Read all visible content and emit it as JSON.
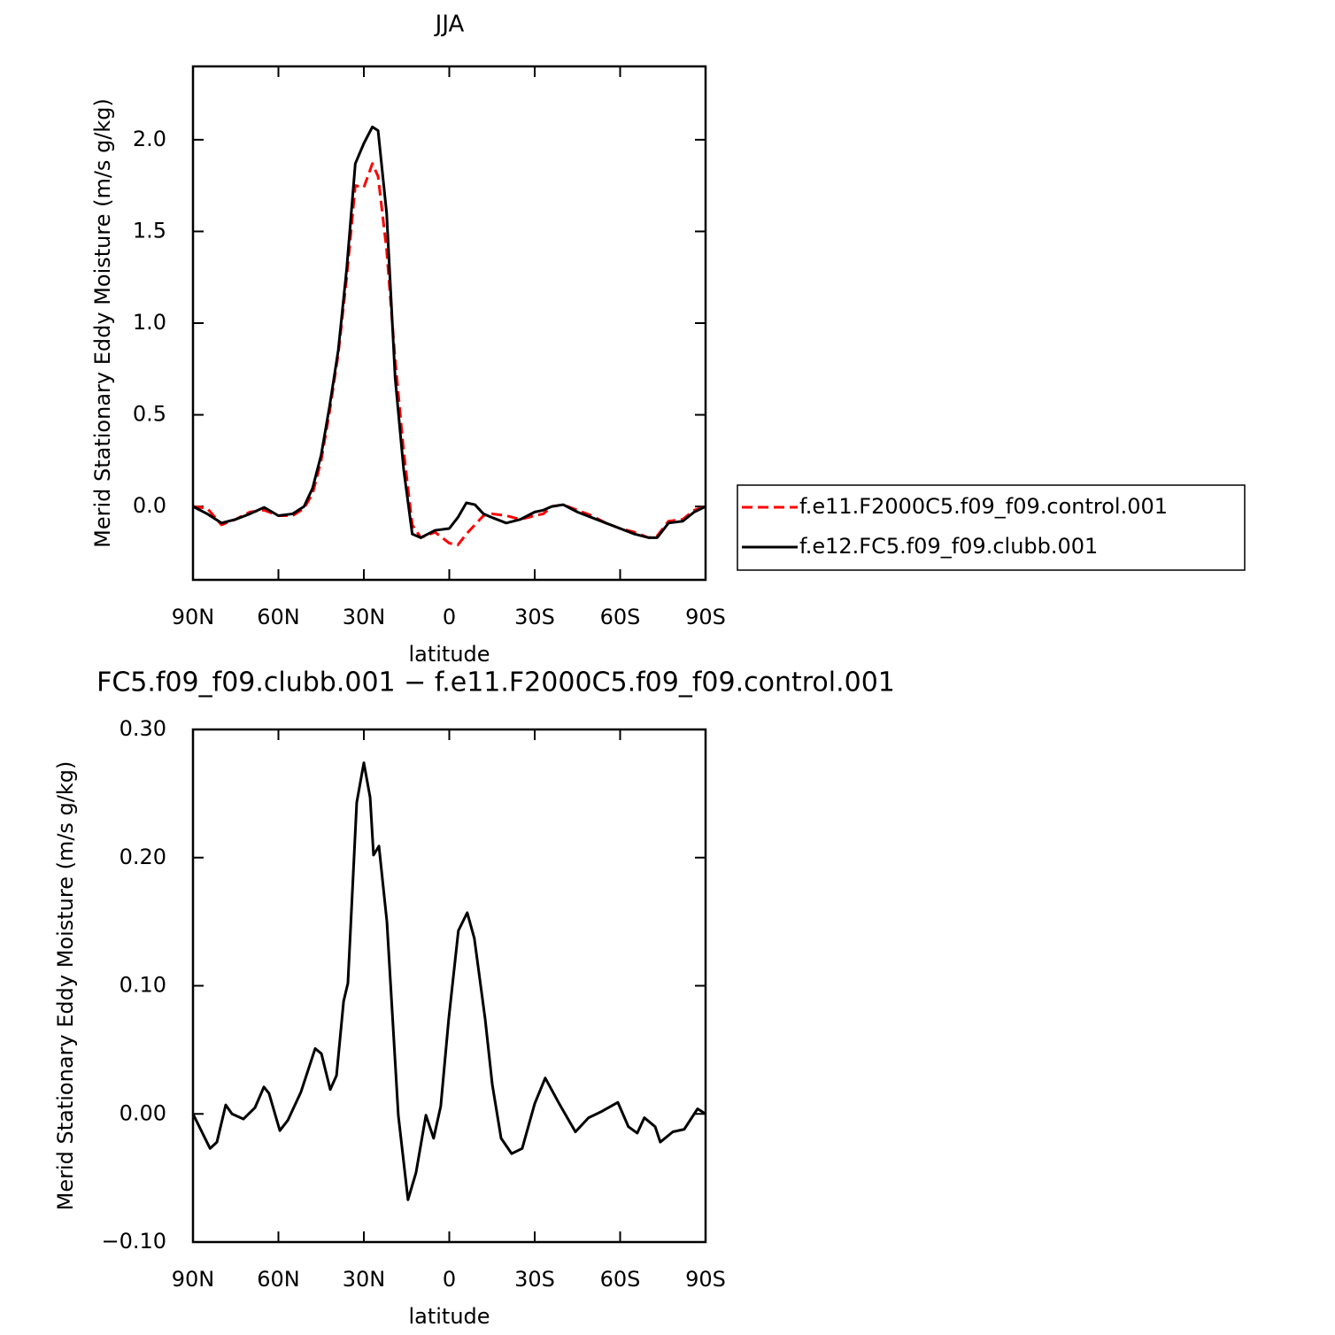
{
  "chart_data": [
    {
      "type": "line",
      "title": "JJA",
      "xlabel": "latitude",
      "ylabel": "Merid Stationary Eddy Moisture (m/s g/kg)",
      "x": [
        90,
        85,
        80,
        75,
        70,
        65,
        60,
        55,
        51,
        48,
        45,
        42,
        39,
        36,
        33,
        30,
        27,
        25,
        22,
        19,
        16,
        13,
        10,
        5,
        0,
        -3,
        -6,
        -9,
        -12,
        -15,
        -20,
        -25,
        -30,
        -33,
        -36,
        -40,
        -45,
        -50,
        -55,
        -60,
        -65,
        -70,
        -73,
        -77,
        -82,
        -86,
        -90
      ],
      "series": [
        {
          "name": "f.e11.F2000C5.f09_f09.control.001",
          "color": "#ff0000",
          "linestyle": "dashed",
          "values": [
            0.0,
            -0.01,
            -0.1,
            -0.07,
            -0.03,
            -0.02,
            -0.05,
            -0.05,
            -0.01,
            0.07,
            0.25,
            0.52,
            0.83,
            1.25,
            1.75,
            1.74,
            1.87,
            1.8,
            1.4,
            0.8,
            0.3,
            -0.1,
            -0.17,
            -0.14,
            -0.2,
            -0.21,
            -0.15,
            -0.1,
            -0.05,
            -0.04,
            -0.05,
            -0.07,
            -0.05,
            -0.04,
            0.0,
            0.01,
            -0.02,
            -0.05,
            -0.09,
            -0.12,
            -0.14,
            -0.17,
            -0.16,
            -0.08,
            -0.07,
            -0.02,
            0.0
          ]
        },
        {
          "name": "f.e12.FC5.f09_f09.clubb.001",
          "color": "#000000",
          "linestyle": "solid",
          "values": [
            0.0,
            -0.04,
            -0.09,
            -0.07,
            -0.04,
            -0.005,
            -0.05,
            -0.04,
            0.0,
            0.1,
            0.28,
            0.55,
            0.85,
            1.3,
            1.87,
            1.98,
            2.07,
            2.05,
            1.6,
            0.7,
            0.2,
            -0.15,
            -0.17,
            -0.13,
            -0.12,
            -0.06,
            0.02,
            0.01,
            -0.04,
            -0.06,
            -0.09,
            -0.07,
            -0.03,
            -0.02,
            0.0,
            0.01,
            -0.03,
            -0.06,
            -0.09,
            -0.12,
            -0.15,
            -0.17,
            -0.17,
            -0.09,
            -0.08,
            -0.03,
            0.0
          ]
        }
      ],
      "xlim": [
        90,
        -90
      ],
      "xticks": [
        {
          "value": 90,
          "label": "90N"
        },
        {
          "value": 60,
          "label": "60N"
        },
        {
          "value": 30,
          "label": "30N"
        },
        0,
        {
          "value": -30,
          "label": "30S"
        },
        {
          "value": -60,
          "label": "60S"
        },
        {
          "value": -90,
          "label": "90S"
        }
      ],
      "ylim": [
        -0.4,
        2.4
      ],
      "yticks": [
        {
          "value": 0,
          "label": "0.0"
        },
        0.5,
        {
          "value": 1,
          "label": "1.0"
        },
        1.5,
        {
          "value": 2,
          "label": "2.0"
        }
      ],
      "legend": "right"
    },
    {
      "type": "line",
      "title": "FC5.f09_f09.clubb.001 − f.e11.F2000C5.f09_f09.control.001",
      "xlabel": "latitude",
      "ylabel": "Merid Stationary Eddy Moisture (m/s g/kg)",
      "x": [
        90,
        84,
        81.6,
        78.5,
        76.3,
        72.3,
        68.2,
        65.1,
        63.3,
        59.5,
        56.7,
        52.1,
        47.1,
        44.9,
        41.8,
        39.6,
        37.1,
        35.6,
        32.5,
        30,
        27.8,
        26.6,
        24.7,
        21.9,
        17.9,
        14.5,
        11.7,
        8.2,
        5.5,
        3,
        0.2,
        -3.2,
        -6.3,
        -8.8,
        -12.6,
        -15.1,
        -18.2,
        -21.9,
        -25.6,
        -30,
        -33.7,
        -38.6,
        -44.3,
        -48.9,
        -53.6,
        -59.2,
        -62.9,
        -66,
        -68.5,
        -72.3,
        -74.1,
        -78.5,
        -82.5,
        -87.2,
        -90
      ],
      "series": [
        {
          "name": null,
          "color": "#000000",
          "linestyle": "solid",
          "values": [
            0.0,
            -0.027,
            -0.022,
            0.007,
            0.0,
            -0.004,
            0.005,
            0.021,
            0.016,
            -0.013,
            -0.005,
            0.017,
            0.051,
            0.047,
            0.019,
            0.03,
            0.088,
            0.102,
            0.243,
            0.274,
            0.247,
            0.202,
            0.209,
            0.15,
            -0.001,
            -0.067,
            -0.046,
            -0.001,
            -0.019,
            0.006,
            0.074,
            0.143,
            0.157,
            0.137,
            0.074,
            0.023,
            -0.019,
            -0.031,
            -0.027,
            0.008,
            0.028,
            0.008,
            -0.014,
            -0.003,
            0.002,
            0.009,
            -0.01,
            -0.015,
            -0.003,
            -0.01,
            -0.022,
            -0.014,
            -0.012,
            0.004,
            0.0
          ]
        }
      ],
      "xlim": [
        90,
        -90
      ],
      "xticks": [
        {
          "value": 90,
          "label": "90N"
        },
        {
          "value": 60,
          "label": "60N"
        },
        {
          "value": 30,
          "label": "30N"
        },
        0,
        {
          "value": -30,
          "label": "30S"
        },
        {
          "value": -60,
          "label": "60S"
        },
        {
          "value": -90,
          "label": "90S"
        }
      ],
      "ylim": [
        -0.1,
        0.3
      ],
      "yticks": [
        {
          "value": -0.1,
          "label": "−0.10"
        },
        {
          "value": 0,
          "label": "0.00"
        },
        {
          "value": 0.1,
          "label": "0.10"
        },
        {
          "value": 0.2,
          "label": "0.20"
        },
        {
          "value": 0.3,
          "label": "0.30"
        }
      ]
    }
  ]
}
